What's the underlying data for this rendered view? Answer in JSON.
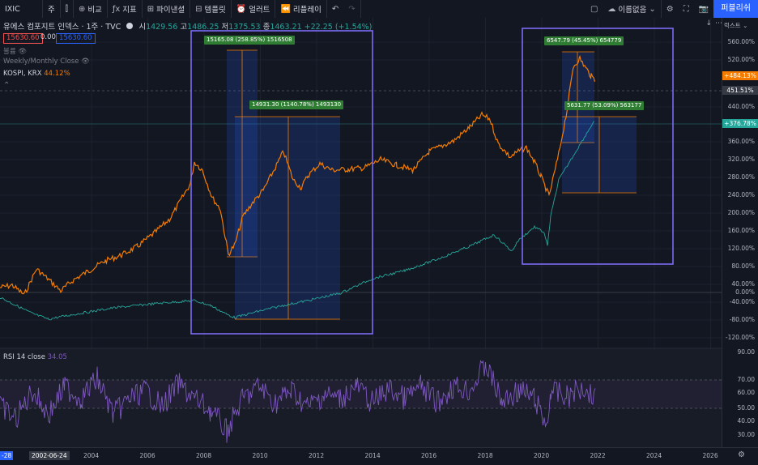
{
  "toolbar": {
    "symbol": "IXIC",
    "interval": "주",
    "compare": "비교",
    "indicators": "지표",
    "layout": "파이낸셜",
    "templates": "템플릿",
    "alert": "얼러트",
    "replay": "리플레이",
    "layout_name": "이름없음",
    "publish": "퍼블리쉬"
  },
  "header": {
    "title": "유에스 컴포지트 인덱스 · 1주 · TVC",
    "o_label": "시",
    "o": "1429.56",
    "h_label": "고",
    "h": "1486.25",
    "l_label": "저",
    "l": "1375.53",
    "c_label": "종",
    "c": "1463.21",
    "change": "+22.25 (+1.54%)"
  },
  "price_boxes": {
    "bid": "15630.60",
    "spread": "0.00",
    "ask": "15630.60"
  },
  "legends": {
    "volume": "볼륨",
    "session": "Weekly/Monthly Close",
    "compare_symbol": "KOSPI, KRX",
    "compare_value": "44.12%"
  },
  "right_axis": {
    "scale_label": "럭스트",
    "ticks": [
      "560.00%",
      "520.00%",
      "440.00%",
      "400.00%",
      "360.00%",
      "320.00%",
      "280.00%",
      "240.00%",
      "200.00%",
      "160.00%",
      "120.00%",
      "80.00%",
      "40.00%",
      "0.00%",
      "-40.00%",
      "-80.00%",
      "-120.00%"
    ],
    "badges": {
      "kospi": "+484.13%",
      "cursor": "451.51%",
      "ixic": "+376.78%"
    },
    "rsi_ticks": [
      "90.00",
      "70.00",
      "60.00",
      "50.00",
      "40.00",
      "30.00"
    ]
  },
  "x_axis": {
    "ticks": [
      "2004",
      "2006",
      "2008",
      "2010",
      "2012",
      "2014",
      "2016",
      "2018",
      "2020",
      "2022",
      "2024",
      "2026"
    ],
    "cursor_date": "2002-06-24",
    "left_edge": "-28"
  },
  "measures": [
    {
      "label": "15165.08 (258.85%) 1516508"
    },
    {
      "label": "14931.30 (1140.78%) 1493130"
    },
    {
      "label": "6547.79 (45.45%) 654779"
    },
    {
      "label": "5631.77 (53.09%) 563177"
    }
  ],
  "rsi": {
    "label": "RSI 14 close",
    "value": "34.05"
  },
  "colors": {
    "kospi": "#f57c00",
    "ixic_up": "#26a69a",
    "ixic_down": "#ef5350",
    "rsi": "#7e57c2",
    "measure_box": "#2e7d32",
    "highlight": "#7b6cf6",
    "publish": "#2962ff"
  },
  "icons": [
    "add-icon",
    "indicator-icon",
    "templates-icon",
    "alert-icon",
    "replay-icon",
    "undo-icon",
    "redo-icon",
    "square-icon",
    "cloud-icon",
    "settings-icon",
    "fullscreen-icon",
    "camera-icon"
  ]
}
